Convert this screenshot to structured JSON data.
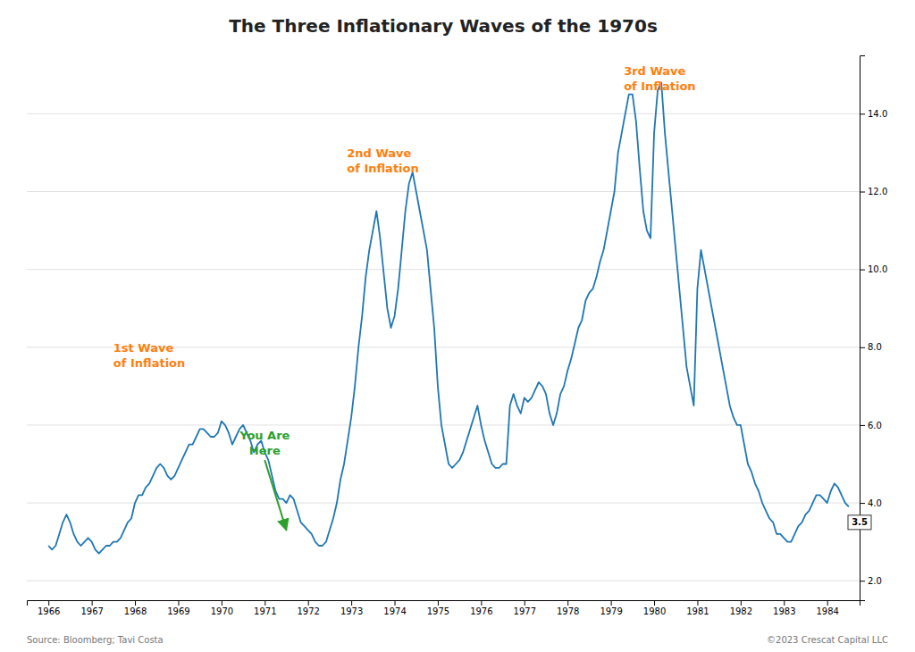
{
  "chart_data": {
    "type": "line",
    "title": "The Three Inflationary Waves of the 1970s",
    "x": [
      1966.0,
      1966.083,
      1966.167,
      1966.25,
      1966.333,
      1966.417,
      1966.5,
      1966.583,
      1966.667,
      1966.75,
      1966.833,
      1966.917,
      1967.0,
      1967.083,
      1967.167,
      1967.25,
      1967.333,
      1967.417,
      1967.5,
      1967.583,
      1967.667,
      1967.75,
      1967.833,
      1967.917,
      1968.0,
      1968.083,
      1968.167,
      1968.25,
      1968.333,
      1968.417,
      1968.5,
      1968.583,
      1968.667,
      1968.75,
      1968.833,
      1968.917,
      1969.0,
      1969.083,
      1969.167,
      1969.25,
      1969.333,
      1969.417,
      1969.5,
      1969.583,
      1969.667,
      1969.75,
      1969.833,
      1969.917,
      1970.0,
      1970.083,
      1970.167,
      1970.25,
      1970.333,
      1970.417,
      1970.5,
      1970.583,
      1970.667,
      1970.75,
      1970.833,
      1970.917,
      1971.0,
      1971.083,
      1971.167,
      1971.25,
      1971.333,
      1971.417,
      1971.5,
      1971.583,
      1971.667,
      1971.75,
      1971.833,
      1971.917,
      1972.0,
      1972.083,
      1972.167,
      1972.25,
      1972.333,
      1972.417,
      1972.5,
      1972.583,
      1972.667,
      1972.75,
      1972.833,
      1972.917,
      1973.0,
      1973.083,
      1973.167,
      1973.25,
      1973.333,
      1973.417,
      1973.5,
      1973.583,
      1973.667,
      1973.75,
      1973.833,
      1973.917,
      1974.0,
      1974.083,
      1974.167,
      1974.25,
      1974.333,
      1974.417,
      1974.5,
      1974.583,
      1974.667,
      1974.75,
      1974.833,
      1974.917,
      1975.0,
      1975.083,
      1975.167,
      1975.25,
      1975.333,
      1975.417,
      1975.5,
      1975.583,
      1975.667,
      1975.75,
      1975.833,
      1975.917,
      1976.0,
      1976.083,
      1976.167,
      1976.25,
      1976.333,
      1976.417,
      1976.5,
      1976.583,
      1976.667,
      1976.75,
      1976.833,
      1976.917,
      1977.0,
      1977.083,
      1977.167,
      1977.25,
      1977.333,
      1977.417,
      1977.5,
      1977.583,
      1977.667,
      1977.75,
      1977.833,
      1977.917,
      1978.0,
      1978.083,
      1978.167,
      1978.25,
      1978.333,
      1978.417,
      1978.5,
      1978.583,
      1978.667,
      1978.75,
      1978.833,
      1978.917,
      1979.0,
      1979.083,
      1979.167,
      1979.25,
      1979.333,
      1979.417,
      1979.5,
      1979.583,
      1979.667,
      1979.75,
      1979.833,
      1979.917,
      1980.0,
      1980.083,
      1980.167,
      1980.25,
      1980.333,
      1980.417,
      1980.5,
      1980.583,
      1980.667,
      1980.75,
      1980.833,
      1980.917,
      1981.0,
      1981.083,
      1981.167,
      1981.25,
      1981.333,
      1981.417,
      1981.5,
      1981.583,
      1981.667,
      1981.75,
      1981.833,
      1981.917,
      1982.0,
      1982.083,
      1982.167,
      1982.25,
      1982.333,
      1982.417,
      1982.5,
      1982.583,
      1982.667,
      1982.75,
      1982.833,
      1982.917,
      1983.0,
      1983.083,
      1983.167,
      1983.25,
      1983.333,
      1983.417,
      1983.5,
      1983.583,
      1983.667,
      1983.75,
      1983.833,
      1983.917,
      1984.0,
      1984.083,
      1984.167,
      1984.25,
      1984.333,
      1984.417,
      1984.5
    ],
    "values": [
      2.9,
      2.8,
      2.9,
      3.2,
      3.5,
      3.7,
      3.5,
      3.2,
      3.0,
      2.9,
      3.0,
      3.1,
      3.0,
      2.8,
      2.7,
      2.8,
      2.9,
      2.9,
      3.0,
      3.0,
      3.1,
      3.3,
      3.5,
      3.6,
      4.0,
      4.2,
      4.2,
      4.4,
      4.5,
      4.7,
      4.9,
      5.0,
      4.9,
      4.7,
      4.6,
      4.7,
      4.9,
      5.1,
      5.3,
      5.5,
      5.5,
      5.7,
      5.9,
      5.9,
      5.8,
      5.7,
      5.7,
      5.8,
      6.1,
      6.0,
      5.8,
      5.5,
      5.7,
      5.9,
      6.0,
      5.8,
      5.6,
      5.3,
      5.5,
      5.6,
      5.3,
      5.1,
      4.7,
      4.3,
      4.1,
      4.1,
      4.0,
      4.2,
      4.1,
      3.8,
      3.5,
      3.4,
      3.3,
      3.2,
      3.0,
      2.9,
      2.9,
      3.0,
      3.3,
      3.6,
      4.0,
      4.6,
      5.0,
      5.6,
      6.2,
      7.0,
      8.0,
      8.8,
      9.8,
      10.5,
      11.0,
      11.5,
      10.8,
      9.9,
      9.0,
      8.5,
      8.8,
      9.5,
      10.5,
      11.5,
      12.2,
      12.5,
      12.0,
      11.5,
      11.0,
      10.5,
      9.5,
      8.5,
      7.0,
      6.0,
      5.5,
      5.0,
      4.9,
      5.0,
      5.1,
      5.3,
      5.6,
      5.9,
      6.2,
      6.5,
      6.0,
      5.6,
      5.3,
      5.0,
      4.9,
      4.9,
      5.0,
      5.0,
      6.5,
      6.8,
      6.5,
      6.3,
      6.7,
      6.6,
      6.7,
      6.9,
      7.1,
      7.0,
      6.8,
      6.3,
      6.0,
      6.3,
      6.8,
      7.0,
      7.4,
      7.7,
      8.1,
      8.5,
      8.7,
      9.2,
      9.4,
      9.5,
      9.8,
      10.2,
      10.5,
      11.0,
      11.5,
      12.0,
      13.0,
      13.5,
      14.0,
      14.5,
      14.5,
      13.8,
      12.6,
      11.5,
      11.0,
      10.8,
      13.5,
      14.6,
      14.8,
      13.5,
      12.5,
      11.5,
      10.5,
      9.5,
      8.5,
      7.5,
      7.0,
      6.5,
      9.5,
      10.5,
      10.0,
      9.5,
      9.0,
      8.5,
      8.0,
      7.5,
      7.0,
      6.5,
      6.2,
      6.0,
      6.0,
      5.5,
      5.0,
      4.8,
      4.5,
      4.3,
      4.0,
      3.8,
      3.6,
      3.5,
      3.2,
      3.2,
      3.1,
      3.0,
      3.0,
      3.2,
      3.4,
      3.5,
      3.7,
      3.8,
      4.0,
      4.2,
      4.2,
      4.1,
      4.0,
      4.3,
      4.5,
      4.4,
      4.2,
      4.0,
      3.9
    ],
    "xlim": [
      1965.5,
      1984.75
    ],
    "xticks": [
      1966,
      1967,
      1968,
      1969,
      1970,
      1971,
      1972,
      1973,
      1974,
      1975,
      1976,
      1977,
      1978,
      1979,
      1980,
      1981,
      1982,
      1983,
      1984
    ],
    "ylim": [
      1.5,
      15.5
    ],
    "yticks": [
      {
        "value": 2.0,
        "label": "2.0"
      },
      {
        "value": 4.0,
        "label": "4.0"
      },
      {
        "value": 6.0,
        "label": "6.0"
      },
      {
        "value": 8.0,
        "label": "8.0"
      },
      {
        "value": 10.0,
        "label": "10.0"
      },
      {
        "value": 12.0,
        "label": "12.0"
      },
      {
        "value": 14.0,
        "label": "14.0"
      }
    ],
    "grid": "y",
    "annotations": [
      {
        "text": [
          "1st Wave",
          "of Inflation"
        ],
        "x": 1967.5,
        "y": 7.8
      },
      {
        "text": [
          "2nd Wave",
          "of Inflation"
        ],
        "x": 1972.9,
        "y": 12.8
      },
      {
        "text": [
          "3rd Wave",
          "of Inflation"
        ],
        "x": 1979.3,
        "y": 14.9
      },
      {
        "text": [
          "You Are",
          "Here"
        ],
        "x": 1971.0,
        "y": 5.1,
        "arrow_to": [
          1971.5,
          3.3
        ]
      },
      {
        "text": "3.5",
        "x": 1984.75,
        "y": 3.5
      }
    ],
    "source": "Source: Bloomberg; Tavi Costa",
    "copyright": "©2023 Crescat Capital LLC"
  }
}
